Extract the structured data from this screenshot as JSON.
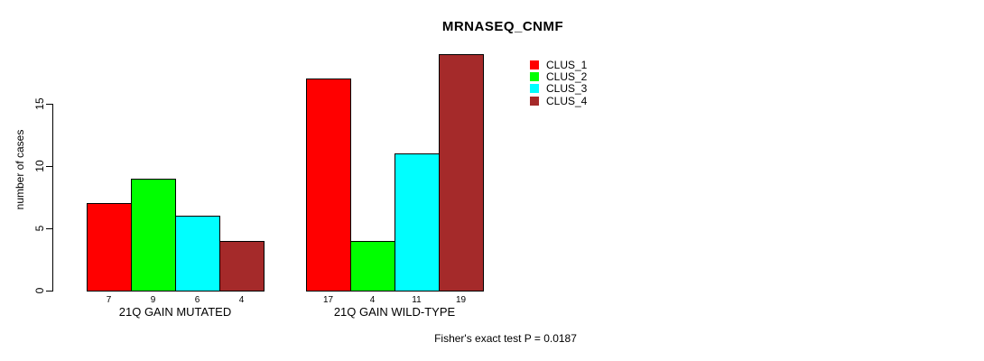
{
  "title": "MRNASEQ_CNMF",
  "ylabel": "number of cases",
  "footer": "Fisher's exact test P = 0.0187",
  "legend": {
    "items": [
      {
        "label": "CLUS_1",
        "color": "#ff0000"
      },
      {
        "label": "CLUS_2",
        "color": "#00ff00"
      },
      {
        "label": "CLUS_3",
        "color": "#00ffff"
      },
      {
        "label": "CLUS_4",
        "color": "#a52a2a"
      }
    ]
  },
  "chart_data": {
    "type": "bar",
    "title": "MRNASEQ_CNMF",
    "xlabel": "",
    "ylabel": "number of cases",
    "ylim": [
      0,
      19
    ],
    "yticks": [
      0,
      5,
      10,
      15
    ],
    "grid": false,
    "legend_position": "top-right-inside",
    "series_names": [
      "CLUS_1",
      "CLUS_2",
      "CLUS_3",
      "CLUS_4"
    ],
    "series_colors": [
      "#ff0000",
      "#00ff00",
      "#00ffff",
      "#a52a2a"
    ],
    "groups": [
      {
        "label": "21Q GAIN MUTATED",
        "values": [
          7,
          9,
          6,
          4
        ]
      },
      {
        "label": "21Q GAIN WILD-TYPE",
        "values": [
          17,
          4,
          11,
          19
        ]
      }
    ],
    "annotation": "Fisher's exact test P = 0.0187"
  }
}
